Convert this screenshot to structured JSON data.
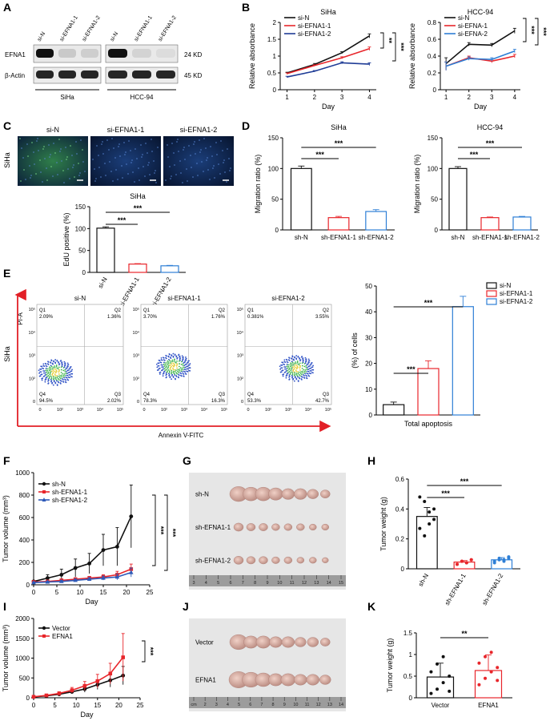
{
  "panel_letters": [
    "A",
    "B",
    "C",
    "D",
    "E",
    "F",
    "G",
    "H",
    "I",
    "J",
    "K"
  ],
  "western": {
    "groups": [
      "SiHa",
      "HCC-94"
    ],
    "lanes": [
      "si-N",
      "si-EFNA1-1",
      "si-EFNA1-2"
    ],
    "rows": [
      "EFNA1",
      "β-Actin"
    ],
    "sizes": [
      "24 KD",
      "45 KD"
    ]
  },
  "panelC": {
    "cell_label": "SiHa",
    "image_labels": [
      "si-N",
      "si-EFNA1-1",
      "si-EFNA1-2"
    ]
  },
  "panelE": {
    "cell_label": "SiHa",
    "y_label": "PI-A",
    "x_label": "Annexin V-FITC",
    "plots": [
      {
        "title": "si-N",
        "q1": "2.09%",
        "q2": "1.36%",
        "q3": "2.02%",
        "q4": "94.5%"
      },
      {
        "title": "si-EFNA1-1",
        "q1": "3.70%",
        "q2": "1.76%",
        "q3": "16.3%",
        "q4": "78.3%"
      },
      {
        "title": "si-EFNA1-2",
        "q1": "0.381%",
        "q2": "3.55%",
        "q3": "42.7%",
        "q4": "53.3%"
      }
    ],
    "quadrant_names": [
      "Q1",
      "Q2",
      "Q3",
      "Q4"
    ],
    "y_ticks": [
      "10⁵",
      "10⁴",
      "10³",
      "10²",
      "0"
    ],
    "x_ticks": [
      "0",
      "10²",
      "10³",
      "10⁴",
      "10⁵"
    ]
  },
  "gel_labels": {
    "G": [
      "sh-N",
      "sh-EFNA1-1",
      "sh-EFNA1-2"
    ],
    "J": [
      "Vector",
      "EFNA1"
    ]
  },
  "ruler": {
    "G": [
      "3",
      "4",
      "5",
      "6",
      "7",
      "8",
      "9",
      "10",
      "11",
      "12",
      "13",
      "14",
      "15"
    ],
    "J": [
      "cm",
      "2",
      "3",
      "4",
      "5",
      "6",
      "7",
      "8",
      "9",
      "10",
      "11",
      "12",
      "13",
      "14"
    ]
  },
  "significance": {
    "two": "**",
    "three": "***"
  },
  "chart_data": [
    {
      "id": "B1",
      "type": "line",
      "title": "SiHa",
      "xlabel": "Day",
      "ylabel": "Relative absorbance",
      "x": [
        1,
        2,
        3,
        4
      ],
      "xlim": [
        0.75,
        4.25
      ],
      "ylim": [
        0,
        2.0
      ],
      "yticks": [
        0,
        0.5,
        1.0,
        1.5,
        2.0
      ],
      "series": [
        {
          "name": "si-N",
          "color": "#111111",
          "values": [
            0.5,
            0.75,
            1.1,
            1.6
          ],
          "err": [
            0.02,
            0.03,
            0.03,
            0.06
          ]
        },
        {
          "name": "si-EFNA1-1",
          "color": "#e8262b",
          "values": [
            0.48,
            0.72,
            0.95,
            1.22
          ],
          "err": [
            0.02,
            0.02,
            0.03,
            0.05
          ]
        },
        {
          "name": "si-EFNA1-2",
          "color": "#1f3c96",
          "values": [
            0.38,
            0.55,
            0.8,
            0.76
          ],
          "err": [
            0.02,
            0.02,
            0.03,
            0.04
          ]
        }
      ],
      "sig": [
        "**",
        "***"
      ]
    },
    {
      "id": "B2",
      "type": "line",
      "title": "HCC-94",
      "xlabel": "Day",
      "ylabel": "Relative absorbance",
      "x": [
        1,
        2,
        3,
        4
      ],
      "xlim": [
        0.75,
        4.25
      ],
      "ylim": [
        0,
        0.8
      ],
      "yticks": [
        0,
        0.2,
        0.4,
        0.6,
        0.8
      ],
      "series": [
        {
          "name": "si-N",
          "color": "#111111",
          "values": [
            0.31,
            0.54,
            0.53,
            0.7
          ],
          "err": [
            0.07,
            0.02,
            0.02,
            0.03
          ]
        },
        {
          "name": "si-EFNA-1",
          "color": "#e8262b",
          "values": [
            0.28,
            0.38,
            0.34,
            0.4
          ],
          "err": [
            0.05,
            0.02,
            0.02,
            0.02
          ]
        },
        {
          "name": "si-EFNA-2",
          "color": "#2e7fd6",
          "values": [
            0.28,
            0.37,
            0.36,
            0.46
          ],
          "err": [
            0.05,
            0.02,
            0.02,
            0.02
          ]
        }
      ],
      "sig": [
        "***",
        "***"
      ]
    },
    {
      "id": "C2",
      "type": "bar",
      "title": "SiHa",
      "ylabel": "EdU positive (%)",
      "categories": [
        "si-N",
        "si-EFNA1-1",
        "si-EFNA1-2"
      ],
      "values": [
        101,
        19,
        15
      ],
      "err": [
        3,
        1,
        1
      ],
      "colors": [
        "#111111",
        "#e8262b",
        "#2e7fd6"
      ],
      "ylim": [
        0,
        150
      ],
      "yticks": [
        0,
        50,
        100,
        150
      ],
      "sig": [
        "***",
        "***"
      ]
    },
    {
      "id": "D1",
      "type": "bar",
      "title": "SiHa",
      "ylabel": "Migration ratio (%)",
      "categories": [
        "sh-N",
        "sh-EFNA1-1",
        "sh-EFNA1-2"
      ],
      "values": [
        100,
        20,
        30
      ],
      "err": [
        4,
        2,
        3
      ],
      "colors": [
        "#111111",
        "#e8262b",
        "#2e7fd6"
      ],
      "ylim": [
        0,
        150
      ],
      "yticks": [
        0,
        50,
        100,
        150
      ],
      "sig": [
        "***",
        "***"
      ]
    },
    {
      "id": "D2",
      "type": "bar",
      "title": "HCC-94",
      "ylabel": "Migration ratio (%)",
      "categories": [
        "sh-N",
        "sh-EFNA1-1",
        "sh-EFNA1-2"
      ],
      "values": [
        100,
        20,
        21
      ],
      "err": [
        3,
        1,
        1
      ],
      "colors": [
        "#111111",
        "#e8262b",
        "#2e7fd6"
      ],
      "ylim": [
        0,
        150
      ],
      "yticks": [
        0,
        50,
        100,
        150
      ],
      "sig": [
        "***",
        "***"
      ]
    },
    {
      "id": "E2",
      "type": "bar",
      "ylabel": "(%) of cells",
      "xlabel": "Total apoptosis",
      "categories": [
        "si-N",
        "si-EFNA1-1",
        "si-EFNA1-2"
      ],
      "values": [
        4,
        18,
        42
      ],
      "err": [
        1,
        3,
        4
      ],
      "colors": [
        "#111111",
        "#e8262b",
        "#2e7fd6"
      ],
      "ylim": [
        0,
        50
      ],
      "yticks": [
        0,
        10,
        20,
        30,
        40,
        50
      ],
      "legend": [
        "si-N",
        "si-EFNA1-1",
        "si-EFNA1-2"
      ],
      "sig": [
        "***",
        "***"
      ]
    },
    {
      "id": "F",
      "type": "line",
      "xlabel": "Day",
      "ylabel": "Tumor volume (mm³)",
      "x": [
        0,
        3,
        6,
        9,
        12,
        15,
        18,
        21
      ],
      "xlim": [
        0,
        25
      ],
      "xticks": [
        0,
        5,
        10,
        15,
        20,
        25
      ],
      "ylim": [
        0,
        1000
      ],
      "yticks": [
        0,
        200,
        400,
        600,
        800,
        1000
      ],
      "series": [
        {
          "name": "sh-N",
          "color": "#111111",
          "marker": "circle",
          "values": [
            30,
            60,
            90,
            150,
            190,
            310,
            340,
            610
          ],
          "err": [
            10,
            30,
            50,
            80,
            90,
            140,
            170,
            280
          ]
        },
        {
          "name": "sh-EFNA1-1",
          "color": "#e8262b",
          "marker": "square",
          "values": [
            25,
            30,
            40,
            50,
            60,
            70,
            90,
            140
          ],
          "err": [
            5,
            8,
            10,
            12,
            15,
            20,
            30,
            45
          ]
        },
        {
          "name": "sh-EFNA1-2",
          "color": "#2e5ab8",
          "marker": "triangle",
          "values": [
            20,
            25,
            30,
            40,
            50,
            60,
            70,
            110
          ],
          "err": [
            5,
            8,
            10,
            12,
            14,
            18,
            25,
            40
          ]
        }
      ],
      "sig": [
        "***",
        "***"
      ]
    },
    {
      "id": "H",
      "type": "bar",
      "ylabel": "Tumor weight (g)",
      "categories": [
        "sh-N",
        "sh-EFNA1-1",
        "sh-EFNA1-2"
      ],
      "values": [
        0.35,
        0.045,
        0.06
      ],
      "err": [
        0.06,
        0.01,
        0.015
      ],
      "colors": [
        "#111111",
        "#e8262b",
        "#2e7fd6"
      ],
      "ylim": [
        0,
        0.6
      ],
      "yticks": [
        0,
        0.2,
        0.4,
        0.6
      ],
      "points": [
        [
          0.48,
          0.45,
          0.38,
          0.33,
          0.27,
          0.22,
          0.3,
          0.4
        ],
        [
          0.03,
          0.05,
          0.04,
          0.06,
          0.03,
          0.05,
          0.04,
          0.06
        ],
        [
          0.05,
          0.07,
          0.06,
          0.08,
          0.04,
          0.06,
          0.05,
          0.07
        ]
      ],
      "sig": [
        "***",
        "***"
      ]
    },
    {
      "id": "I",
      "type": "line",
      "xlabel": "Day",
      "ylabel": "Tumor volume (mm³)",
      "x": [
        0,
        3,
        6,
        9,
        12,
        15,
        18,
        21
      ],
      "xlim": [
        0,
        25
      ],
      "xticks": [
        0,
        5,
        10,
        15,
        20,
        25
      ],
      "ylim": [
        0,
        2000
      ],
      "yticks": [
        0,
        500,
        1000,
        1500,
        2000
      ],
      "series": [
        {
          "name": "Vector",
          "color": "#111111",
          "marker": "circle",
          "values": [
            20,
            50,
            90,
            150,
            220,
            330,
            440,
            560
          ],
          "err": [
            5,
            15,
            30,
            50,
            80,
            120,
            170,
            230
          ]
        },
        {
          "name": "EFNA1",
          "color": "#e8262b",
          "marker": "square",
          "values": [
            25,
            60,
            110,
            190,
            300,
            420,
            610,
            1020
          ],
          "err": [
            5,
            20,
            40,
            70,
            110,
            170,
            260,
            600
          ]
        }
      ],
      "sig": [
        "***"
      ]
    },
    {
      "id": "K",
      "type": "bar",
      "ylabel": "Tumor weight (g)",
      "categories": [
        "Vector",
        "EFNA1"
      ],
      "values": [
        0.48,
        0.63
      ],
      "err": [
        0.32,
        0.36
      ],
      "colors": [
        "#111111",
        "#e8262b"
      ],
      "ylim": [
        0,
        1.5
      ],
      "yticks": [
        0,
        0.5,
        1.0,
        1.5
      ],
      "points": [
        [
          0.1,
          0.2,
          0.35,
          0.5,
          0.6,
          0.78,
          0.95,
          0.15
        ],
        [
          0.3,
          0.45,
          0.6,
          0.7,
          0.8,
          0.95,
          1.05,
          0.4
        ]
      ],
      "sig": [
        "**"
      ]
    }
  ]
}
